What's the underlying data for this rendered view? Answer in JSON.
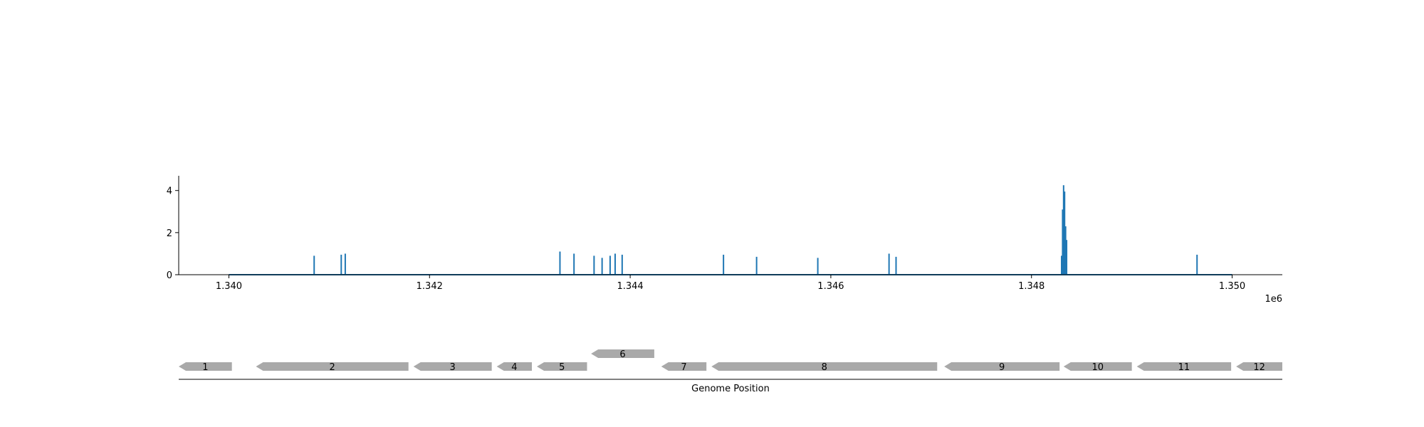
{
  "chart_data": [
    {
      "type": "line",
      "title": "",
      "xlabel": "",
      "ylabel": "",
      "x_offset_label": "1e6",
      "xlim": [
        1339500,
        1350500
      ],
      "ylim": [
        0,
        4.7
      ],
      "x_ticks": [
        1340000,
        1342000,
        1344000,
        1346000,
        1348000,
        1350000
      ],
      "x_tick_labels": [
        "1.340",
        "1.342",
        "1.344",
        "1.346",
        "1.348",
        "1.350"
      ],
      "y_ticks": [
        0,
        2,
        4
      ],
      "y_tick_labels": [
        "0",
        "2",
        "4"
      ],
      "grid": false,
      "series_color": "#1f77b4",
      "baseline": {
        "x_start": 1340000,
        "x_end": 1350000,
        "y": 0
      },
      "peaks": [
        {
          "x": 1340850,
          "y": 0.9
        },
        {
          "x": 1341120,
          "y": 0.95
        },
        {
          "x": 1341160,
          "y": 1.0
        },
        {
          "x": 1343300,
          "y": 1.1
        },
        {
          "x": 1343440,
          "y": 1.0
        },
        {
          "x": 1343640,
          "y": 0.9
        },
        {
          "x": 1343720,
          "y": 0.8
        },
        {
          "x": 1343800,
          "y": 0.9
        },
        {
          "x": 1343850,
          "y": 1.0
        },
        {
          "x": 1343920,
          "y": 0.95
        },
        {
          "x": 1344930,
          "y": 0.95
        },
        {
          "x": 1345260,
          "y": 0.85
        },
        {
          "x": 1345870,
          "y": 0.8
        },
        {
          "x": 1346580,
          "y": 1.0
        },
        {
          "x": 1346650,
          "y": 0.85
        },
        {
          "x": 1348300,
          "y": 0.9
        },
        {
          "x": 1348310,
          "y": 3.1
        },
        {
          "x": 1348320,
          "y": 4.25
        },
        {
          "x": 1348330,
          "y": 3.95
        },
        {
          "x": 1348340,
          "y": 2.3
        },
        {
          "x": 1348350,
          "y": 1.65
        },
        {
          "x": 1349650,
          "y": 0.95
        }
      ]
    },
    {
      "type": "gene_track",
      "xlabel": "Genome Position",
      "xlim": [
        1339500,
        1350500
      ],
      "color": "#a9a9a9",
      "genes": [
        {
          "label": "1",
          "start": 1339500,
          "end": 1340030,
          "strand": "-",
          "row": 0
        },
        {
          "label": "2",
          "start": 1340270,
          "end": 1341790,
          "strand": "-",
          "row": 0
        },
        {
          "label": "3",
          "start": 1341840,
          "end": 1342620,
          "strand": "-",
          "row": 0
        },
        {
          "label": "4",
          "start": 1342670,
          "end": 1343020,
          "strand": "-",
          "row": 0
        },
        {
          "label": "5",
          "start": 1343070,
          "end": 1343570,
          "strand": "-",
          "row": 0
        },
        {
          "label": "6",
          "start": 1343610,
          "end": 1344240,
          "strand": "-",
          "row": 1
        },
        {
          "label": "7",
          "start": 1344310,
          "end": 1344760,
          "strand": "-",
          "row": 0
        },
        {
          "label": "8",
          "start": 1344810,
          "end": 1347060,
          "strand": "-",
          "row": 0
        },
        {
          "label": "9",
          "start": 1347130,
          "end": 1348280,
          "strand": "-",
          "row": 0
        },
        {
          "label": "10",
          "start": 1348320,
          "end": 1349000,
          "strand": "-",
          "row": 0
        },
        {
          "label": "11",
          "start": 1349050,
          "end": 1349990,
          "strand": "-",
          "row": 0
        },
        {
          "label": "12",
          "start": 1350040,
          "end": 1350500,
          "strand": "-",
          "row": 0
        }
      ]
    }
  ]
}
